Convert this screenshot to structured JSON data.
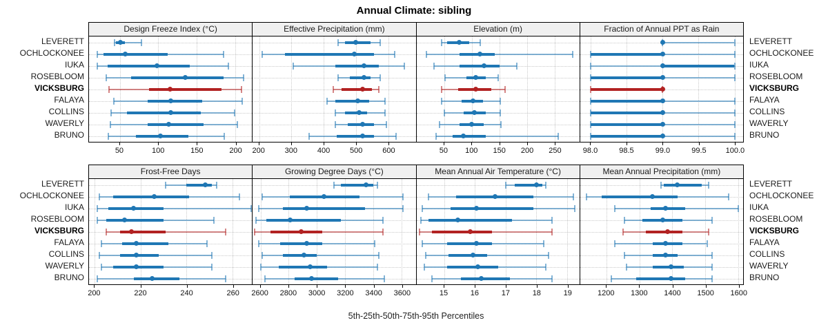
{
  "title": "Annual Climate: sibling",
  "caption": "5th-25th-50th-75th-95th Percentiles",
  "colors": {
    "blue": "#1F77B4",
    "blue_light": "rgba(31,119,180,0.55)",
    "red": "#B22222",
    "red_light": "rgba(178,34,34,0.55)",
    "grid": "#C9C9C9",
    "header_bg": "#F0F0F0",
    "border": "#000000"
  },
  "chart_data": {
    "type": "trellis-dotplot",
    "title": "Annual Climate: sibling",
    "caption": "5th-25th-50th-75th-95th Percentiles",
    "percentiles": [
      "5th",
      "25th",
      "50th",
      "75th",
      "95th"
    ],
    "sites": [
      "LEVERETT",
      "OCHLOCKONEE",
      "IUKA",
      "ROSEBLOOM",
      "VICKSBURG",
      "FALAYA",
      "COLLINS",
      "WAVERLY",
      "BRUNO"
    ],
    "highlight_site": "VICKSBURG",
    "layout": {
      "rows": 2,
      "cols": 4
    },
    "panels": [
      {
        "title": "Design Freeze Index (°C)",
        "grid_pos": [
          0,
          0
        ],
        "xlim": [
          10,
          222
        ],
        "ticks": [
          50,
          100,
          150,
          200
        ],
        "tick_labels": [
          "50",
          "100",
          "150",
          "200"
        ],
        "values": [
          [
            43,
            45,
            51,
            57,
            78
          ],
          [
            21,
            29,
            57,
            112,
            185
          ],
          [
            21,
            34,
            98,
            141,
            191
          ],
          [
            32,
            65,
            135,
            185,
            211
          ],
          [
            36,
            88,
            115,
            182,
            208
          ],
          [
            42,
            86,
            116,
            157,
            209
          ],
          [
            39,
            59,
            116,
            155,
            199
          ],
          [
            38,
            86,
            114,
            159,
            203
          ],
          [
            35,
            71,
            103,
            139,
            186
          ]
        ]
      },
      {
        "title": "Effective Precipitation (mm)",
        "grid_pos": [
          0,
          1
        ],
        "xlim": [
          180,
          685
        ],
        "ticks": [
          200,
          300,
          400,
          500,
          600
        ],
        "tick_labels": [
          "200",
          "300",
          "400",
          "500",
          "600"
        ],
        "values": [
          [
            445,
            465,
            500,
            545,
            575
          ],
          [
            210,
            280,
            495,
            555,
            620
          ],
          [
            305,
            435,
            525,
            570,
            650
          ],
          [
            445,
            480,
            525,
            545,
            575
          ],
          [
            430,
            455,
            520,
            550,
            570
          ],
          [
            410,
            435,
            505,
            540,
            590
          ],
          [
            435,
            465,
            510,
            535,
            590
          ],
          [
            435,
            475,
            520,
            555,
            595
          ],
          [
            355,
            440,
            520,
            555,
            625
          ]
        ]
      },
      {
        "title": "Elevation (m)",
        "grid_pos": [
          0,
          2
        ],
        "xlim": [
          0,
          295
        ],
        "ticks": [
          50,
          100,
          150,
          200,
          250
        ],
        "tick_labels": [
          "50",
          "100",
          "150",
          "200",
          "250"
        ],
        "values": [
          [
            45,
            55,
            78,
            95,
            115
          ],
          [
            18,
            78,
            115,
            142,
            283
          ],
          [
            32,
            78,
            122,
            150,
            182
          ],
          [
            52,
            90,
            108,
            125,
            148
          ],
          [
            45,
            75,
            107,
            135,
            160
          ],
          [
            45,
            82,
            102,
            120,
            152
          ],
          [
            50,
            85,
            105,
            125,
            152
          ],
          [
            42,
            78,
            100,
            122,
            153
          ],
          [
            35,
            65,
            85,
            125,
            257
          ]
        ]
      },
      {
        "title": "Fraction of Annual PPT as Rain",
        "grid_pos": [
          0,
          3
        ],
        "xlim": [
          97.85,
          100.12
        ],
        "ticks": [
          98.0,
          98.5,
          99.0,
          99.5,
          100.0
        ],
        "tick_labels": [
          "98.0",
          "98.5",
          "99.0",
          "99.5",
          "100.0"
        ],
        "values": [
          [
            99,
            99,
            99,
            99,
            100
          ],
          [
            98,
            98,
            99,
            99,
            100
          ],
          [
            98,
            99,
            99,
            100,
            100
          ],
          [
            98,
            98,
            99,
            99,
            100
          ],
          [
            98,
            98,
            99,
            99,
            99
          ],
          [
            98,
            98,
            99,
            99,
            100
          ],
          [
            98,
            98,
            99,
            99,
            100
          ],
          [
            98,
            98,
            99,
            99,
            100
          ],
          [
            98,
            98,
            99,
            99,
            100
          ]
        ]
      },
      {
        "title": "Frost-Free Days",
        "grid_pos": [
          1,
          0
        ],
        "xlim": [
          197.5,
          268.5
        ],
        "ticks": [
          200,
          220,
          240,
          260
        ],
        "tick_labels": [
          "200",
          "220",
          "240",
          "260"
        ],
        "values": [
          [
            231,
            240,
            248,
            251,
            253
          ],
          [
            202,
            208,
            226,
            241,
            263
          ],
          [
            201,
            206,
            217,
            230,
            268
          ],
          [
            201,
            205,
            213,
            230,
            252
          ],
          [
            205,
            211,
            216,
            231,
            257
          ],
          [
            203,
            212,
            218,
            232,
            249
          ],
          [
            202,
            211,
            218,
            228,
            251
          ],
          [
            203,
            208,
            218,
            230,
            251
          ],
          [
            201,
            217,
            225,
            237,
            257
          ]
        ]
      },
      {
        "title": "Growing Degree Days (°C)",
        "grid_pos": [
          1,
          1
        ],
        "xlim": [
          2545,
          3700
        ],
        "ticks": [
          2600,
          2800,
          3000,
          3200,
          3400,
          3600
        ],
        "tick_labels": [
          "2600",
          "2800",
          "3000",
          "3200",
          "3400",
          "3600"
        ],
        "values": [
          [
            3120,
            3170,
            3350,
            3400,
            3430
          ],
          [
            2610,
            2810,
            3050,
            3300,
            3610
          ],
          [
            2590,
            2760,
            2930,
            3340,
            3610
          ],
          [
            2570,
            2640,
            2810,
            3170,
            3470
          ],
          [
            2560,
            2670,
            2890,
            3040,
            3470
          ],
          [
            2590,
            2740,
            2930,
            3040,
            3410
          ],
          [
            2610,
            2760,
            2910,
            3000,
            3440
          ],
          [
            2600,
            2730,
            2950,
            3070,
            3430
          ],
          [
            2630,
            2840,
            2960,
            3150,
            3480
          ]
        ]
      },
      {
        "title": "Mean Annual Air Temperature (°C)",
        "grid_pos": [
          1,
          2
        ],
        "xlim": [
          14.1,
          19.4
        ],
        "ticks": [
          15,
          16,
          17,
          18,
          19
        ],
        "tick_labels": [
          "15",
          "16",
          "17",
          "18",
          "19"
        ],
        "values": [
          [
            17.0,
            17.3,
            18.0,
            18.2,
            18.3
          ],
          [
            14.5,
            15.4,
            16.65,
            17.9,
            19.2
          ],
          [
            14.3,
            15.2,
            16.05,
            17.9,
            19.25
          ],
          [
            14.25,
            14.5,
            15.45,
            17.2,
            18.5
          ],
          [
            14.2,
            14.6,
            15.85,
            16.55,
            18.5
          ],
          [
            14.3,
            15.1,
            16.05,
            16.55,
            18.25
          ],
          [
            14.4,
            15.15,
            15.95,
            16.4,
            18.4
          ],
          [
            14.35,
            15.1,
            16.1,
            16.75,
            18.3
          ],
          [
            14.6,
            15.55,
            16.2,
            17.15,
            18.5
          ]
        ]
      },
      {
        "title": "Mean Annual Precipitation (mm)",
        "grid_pos": [
          1,
          3
        ],
        "xlim": [
          1120,
          1615
        ],
        "ticks": [
          1200,
          1300,
          1400,
          1500,
          1600
        ],
        "tick_labels": [
          "1200",
          "1300",
          "1400",
          "1500",
          "1600"
        ],
        "values": [
          [
            1365,
            1375,
            1415,
            1490,
            1510
          ],
          [
            1140,
            1185,
            1340,
            1415,
            1570
          ],
          [
            1225,
            1335,
            1380,
            1440,
            1600
          ],
          [
            1255,
            1310,
            1370,
            1430,
            1520
          ],
          [
            1250,
            1320,
            1385,
            1430,
            1510
          ],
          [
            1225,
            1340,
            1380,
            1430,
            1505
          ],
          [
            1255,
            1340,
            1380,
            1415,
            1520
          ],
          [
            1260,
            1340,
            1395,
            1435,
            1520
          ],
          [
            1215,
            1290,
            1395,
            1440,
            1520
          ]
        ]
      }
    ]
  }
}
